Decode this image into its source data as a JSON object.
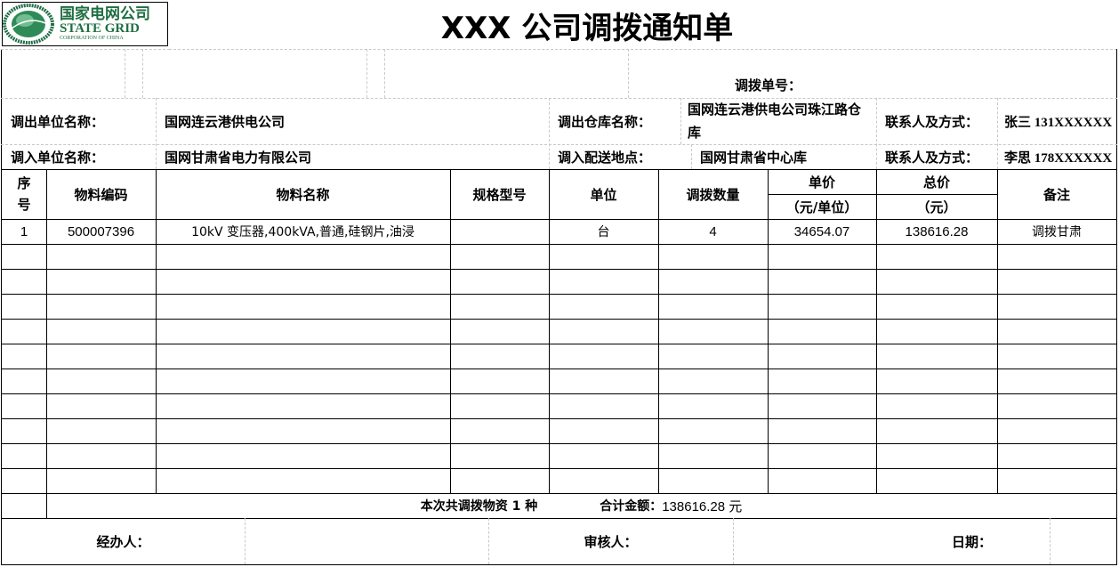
{
  "logo": {
    "cn": "国家电网公司",
    "en": "STATE GRID",
    "sub": "CORPORATION OF CHINA",
    "ring_text": "国家电网公司 STATE GRID CORPORATION OF CHINA",
    "color": "#1f6e43"
  },
  "title": "XXX 公司调拨通知单",
  "order_no_label": "调拨单号：",
  "info": {
    "out_unit_label": "调出单位名称：",
    "out_unit": "国网连云港供电公司",
    "out_wh_label": "调出仓库名称：",
    "out_wh": "国网连云港供电公司珠江路仓库",
    "contact_label_1": "联系人及方式：",
    "contact_1": "张三 131XXXXXX",
    "in_unit_label": "调入单位名称：",
    "in_unit": "国网甘肃省电力有限公司",
    "in_addr_label": "调入配送地点：",
    "in_addr": "国网甘肃省中心库",
    "contact_label_2": "联系人及方式：",
    "contact_2": "李思 178XXXXXX"
  },
  "table": {
    "headers": {
      "seq": "序号",
      "code": "物料编码",
      "name": "物料名称",
      "spec": "规格型号",
      "unit": "单位",
      "qty": "调拨数量",
      "price": "单价",
      "price_unit": "（元/单位）",
      "total": "总价",
      "total_unit": "（元）",
      "note": "备注"
    },
    "rows": [
      {
        "seq": "1",
        "code": "500007396",
        "name": "10kV 变压器,400kVA,普通,硅钢片,油浸",
        "spec": "",
        "unit": "台",
        "qty": "4",
        "price": "34654.07",
        "total": "138616.28",
        "note": "调拨甘肃"
      }
    ]
  },
  "summary": {
    "count_text": "本次共调拨物资 1 种",
    "amount_label": "合计金额：",
    "amount": "138616.28 元"
  },
  "signatures": {
    "handler": "经办人：",
    "reviewer": "审核人：",
    "date": "日期："
  }
}
